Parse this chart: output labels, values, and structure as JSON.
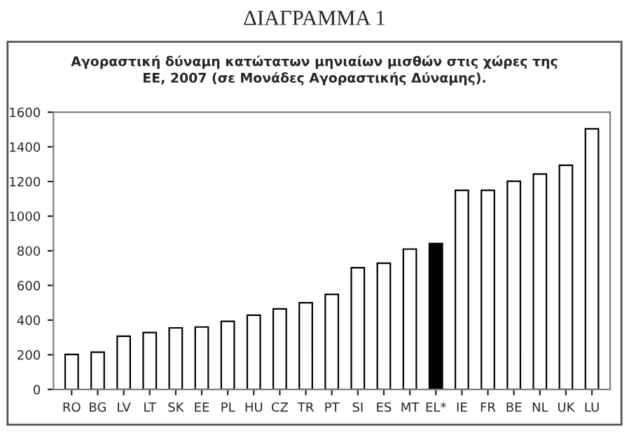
{
  "chart_data": {
    "type": "bar",
    "title": "ΔΙΑΓΡΑΜΜΑ 1",
    "subtitle": "Αγοραστική δύναμη κατώτατων μηνιαίων μισθών στις χώρες της\nΕΕ, 2007 (σε Μονάδες Αγοραστικής Δύναμης).",
    "categories": [
      "RO",
      "BG",
      "LV",
      "LT",
      "SK",
      "EE",
      "PL",
      "HU",
      "CZ",
      "TR",
      "PT",
      "SI",
      "ES",
      "MT",
      "EL*",
      "IE",
      "FR",
      "BE",
      "NL",
      "UK",
      "LU"
    ],
    "values": [
      202,
      215,
      307,
      328,
      355,
      360,
      393,
      428,
      465,
      500,
      549,
      702,
      729,
      810,
      842,
      1149,
      1149,
      1202,
      1243,
      1294,
      1504
    ],
    "colors": [
      "#ffffff",
      "#ffffff",
      "#ffffff",
      "#ffffff",
      "#ffffff",
      "#ffffff",
      "#ffffff",
      "#ffffff",
      "#ffffff",
      "#ffffff",
      "#ffffff",
      "#ffffff",
      "#ffffff",
      "#ffffff",
      "#000000",
      "#ffffff",
      "#ffffff",
      "#ffffff",
      "#ffffff",
      "#ffffff",
      "#ffffff"
    ],
    "ylim": [
      0,
      1600
    ],
    "yticks": [
      0,
      200,
      400,
      600,
      800,
      1000,
      1200,
      1400,
      1600
    ],
    "grid": false,
    "legend": false
  }
}
